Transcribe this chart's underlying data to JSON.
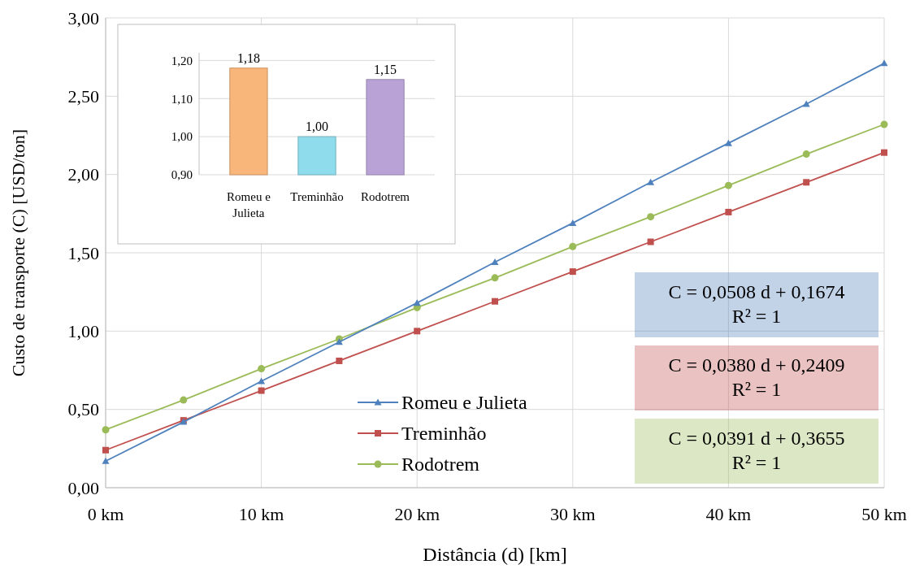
{
  "chart_data": [
    {
      "type": "line",
      "xlabel": "Distância (d)  [km]",
      "ylabel": "Custo de transporte (C) [USD/ton]",
      "x": [
        0,
        5,
        10,
        15,
        20,
        25,
        30,
        35,
        40,
        45,
        50
      ],
      "series": [
        {
          "name": "Romeu e Julieta",
          "color": "#4f81bd",
          "marker": "triangle",
          "values": [
            0.17,
            0.42,
            0.68,
            0.93,
            1.18,
            1.44,
            1.69,
            1.95,
            2.2,
            2.45,
            2.71
          ]
        },
        {
          "name": "Treminhão",
          "color": "#c0504d",
          "marker": "square",
          "values": [
            0.24,
            0.43,
            0.62,
            0.81,
            1.0,
            1.19,
            1.38,
            1.57,
            1.76,
            1.95,
            2.14
          ]
        },
        {
          "name": "Rodotrem",
          "color": "#9bbb59",
          "marker": "circle",
          "values": [
            0.37,
            0.56,
            0.76,
            0.95,
            1.15,
            1.34,
            1.54,
            1.73,
            1.93,
            2.13,
            2.32
          ]
        }
      ],
      "xlim": [
        0,
        50
      ],
      "xticks": [
        {
          "value": 0,
          "label": "0 km"
        },
        {
          "value": 10,
          "label": "10 km"
        },
        {
          "value": 20,
          "label": "20 km"
        },
        {
          "value": 30,
          "label": "30 km"
        },
        {
          "value": 40,
          "label": "40 km"
        },
        {
          "value": 50,
          "label": "50 km"
        }
      ],
      "ylim": [
        0,
        3
      ],
      "yticks": [
        {
          "value": 0,
          "label": "0,00"
        },
        {
          "value": 0.5,
          "label": "0,50"
        },
        {
          "value": 1,
          "label": "1,00"
        },
        {
          "value": 1.5,
          "label": "1,50"
        },
        {
          "value": 2,
          "label": "2,00"
        },
        {
          "value": 2.5,
          "label": "2,50"
        },
        {
          "value": 3,
          "label": "3,00"
        }
      ],
      "grid": true,
      "legend": "bottom",
      "line_style": "solid",
      "annotations": [
        "C = 0,0508 d + 0,1674\nR² = 1",
        "C = 0,0380 d + 0,2409\nR² = 1",
        "C = 0,0391 d + 0,3655\nR² = 1"
      ]
    },
    {
      "type": "bar",
      "categories": [
        "Romeu e\nJulieta",
        "Treminhão",
        "Rodotrem"
      ],
      "values": [
        1.18,
        1.0,
        1.15
      ],
      "colors": [
        "#f9b67a",
        "#8fdcec",
        "#b9a2d6"
      ],
      "ylim": [
        0.9,
        1.22
      ],
      "yticks": [
        {
          "value": 0.9,
          "label": "0,90"
        },
        {
          "value": 1.0,
          "label": "1,00"
        },
        {
          "value": 1.1,
          "label": "1,10"
        },
        {
          "value": 1.2,
          "label": "1,20"
        }
      ],
      "grid": "y",
      "value_labels": [
        "1,18",
        "1,00",
        "1,15"
      ]
    }
  ]
}
